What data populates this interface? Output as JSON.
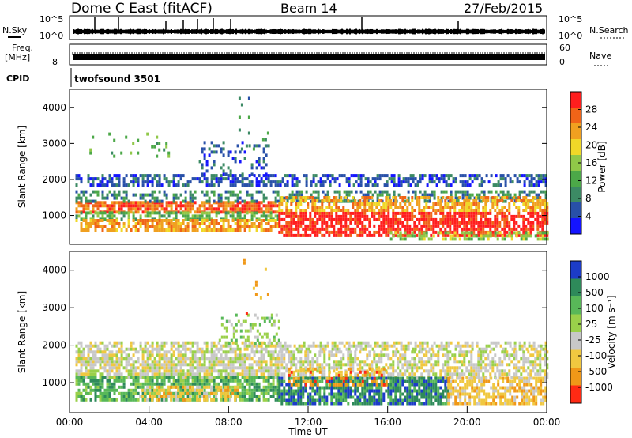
{
  "header": {
    "station": "Dome C East (fitACF)",
    "beam": "Beam 14",
    "date": "27/Feb/2015"
  },
  "strip_labels": {
    "nsky": "N.Sky",
    "nsky_top": "10^5",
    "nsky_bottom": "10^0",
    "nsearch": "N.Search",
    "nsearch_top": "10^5",
    "nsearch_bottom": "10^0",
    "freq_line1": "Freq.",
    "freq_line2": "[MHz]",
    "freq_tick": "8",
    "nave": "Nave",
    "nave_top": "60",
    "nave_bottom": "0",
    "cpid": "CPID",
    "cpid_value": "twofsound 3501"
  },
  "chart_data": [
    {
      "type": "heatmap",
      "name": "power-panel",
      "ylabel": "Slant Range [km]",
      "xlabel": "",
      "xlim": [
        0,
        24
      ],
      "ylim": [
        200,
        4500
      ],
      "yticks": [
        1000,
        2000,
        3000,
        4000
      ],
      "colorbar_label": "Power [dB]",
      "colorbar_ticks": [
        "4",
        "8",
        "12",
        "16",
        "20",
        "24",
        "28"
      ],
      "colors": [
        "#1414ff",
        "#2850a8",
        "#3c8a64",
        "#4ca848",
        "#90c848",
        "#f0d828",
        "#f0a020",
        "#f06418",
        "#ff1e1e"
      ],
      "bands": [
        {
          "t0": 0.3,
          "t1": 24.0,
          "r0": 1800,
          "r1": 2100,
          "level": 1,
          "density": 0.55
        },
        {
          "t0": 0.3,
          "t1": 10.5,
          "r0": 1050,
          "r1": 1350,
          "level": 7,
          "density": 0.8
        },
        {
          "t0": 0.3,
          "t1": 10.5,
          "r0": 850,
          "r1": 1050,
          "level": 3,
          "density": 0.6
        },
        {
          "t0": 0.3,
          "t1": 10.5,
          "r0": 550,
          "r1": 850,
          "level": 6,
          "density": 0.7
        },
        {
          "t0": 0.3,
          "t1": 24.0,
          "r0": 1350,
          "r1": 1700,
          "level": 2,
          "density": 0.45
        },
        {
          "t0": 10.5,
          "t1": 24.0,
          "r0": 400,
          "r1": 1100,
          "level": 8,
          "density": 0.75
        },
        {
          "t0": 10.5,
          "t1": 24.0,
          "r0": 1100,
          "r1": 1500,
          "level": 6,
          "density": 0.6
        },
        {
          "t0": 16.0,
          "t1": 24.0,
          "r0": 300,
          "r1": 500,
          "level": 4,
          "density": 0.5
        },
        {
          "t0": 6.5,
          "t1": 10.0,
          "r0": 2100,
          "r1": 3000,
          "level": 1,
          "density": 0.25
        },
        {
          "t0": 1.0,
          "t1": 5.0,
          "r0": 2600,
          "r1": 3300,
          "level": 3,
          "density": 0.08
        },
        {
          "t0": 8.5,
          "t1": 10.0,
          "r0": 2800,
          "r1": 4400,
          "level": 2,
          "density": 0.06
        }
      ]
    },
    {
      "type": "heatmap",
      "name": "velocity-panel",
      "ylabel": "Slant Range [km]",
      "xlabel": "Time UT",
      "xlim": [
        0,
        24
      ],
      "ylim": [
        200,
        4500
      ],
      "xticks": [
        "00:00",
        "04:00",
        "08:00",
        "12:00",
        "16:00",
        "20:00",
        "00:00"
      ],
      "yticks": [
        1000,
        2000,
        3000,
        4000
      ],
      "colorbar_label": "Velocity [m s⁻¹]",
      "colorbar_ticks": [
        "1000",
        "500",
        "100",
        "25",
        "-25",
        "-100",
        "-500",
        "-1000"
      ],
      "colors": [
        "#1c3cc8",
        "#2e8a5a",
        "#58b858",
        "#9ad04a",
        "#c8c8c8",
        "#f0c840",
        "#f09818",
        "#ff2a14"
      ],
      "bands": [
        {
          "t0": 0.3,
          "t1": 24.0,
          "r0": 1850,
          "r1": 2100,
          "level": 4,
          "density": 0.6
        },
        {
          "t0": 0.3,
          "t1": 10.5,
          "r0": 1100,
          "r1": 1850,
          "level": 4,
          "density": 0.8
        },
        {
          "t0": 0.3,
          "t1": 10.5,
          "r0": 500,
          "r1": 1100,
          "level": 2,
          "density": 0.75
        },
        {
          "t0": 3.5,
          "t1": 8.5,
          "r0": 500,
          "r1": 900,
          "level": 5,
          "density": 0.55
        },
        {
          "t0": 10.5,
          "t1": 24.0,
          "r0": 1100,
          "r1": 1800,
          "level": 4,
          "density": 0.6
        },
        {
          "t0": 10.5,
          "t1": 19.0,
          "r0": 400,
          "r1": 1100,
          "level": 1,
          "density": 0.8
        },
        {
          "t0": 11.0,
          "t1": 16.0,
          "r0": 900,
          "r1": 1400,
          "level": 6,
          "density": 0.35
        },
        {
          "t0": 19.0,
          "t1": 24.0,
          "r0": 400,
          "r1": 1100,
          "level": 5,
          "density": 0.7
        },
        {
          "t0": 7.5,
          "t1": 10.5,
          "r0": 2000,
          "r1": 2800,
          "level": 3,
          "density": 0.25
        },
        {
          "t0": 8.5,
          "t1": 10.0,
          "r0": 2800,
          "r1": 4400,
          "level": 6,
          "density": 0.06
        }
      ]
    }
  ]
}
